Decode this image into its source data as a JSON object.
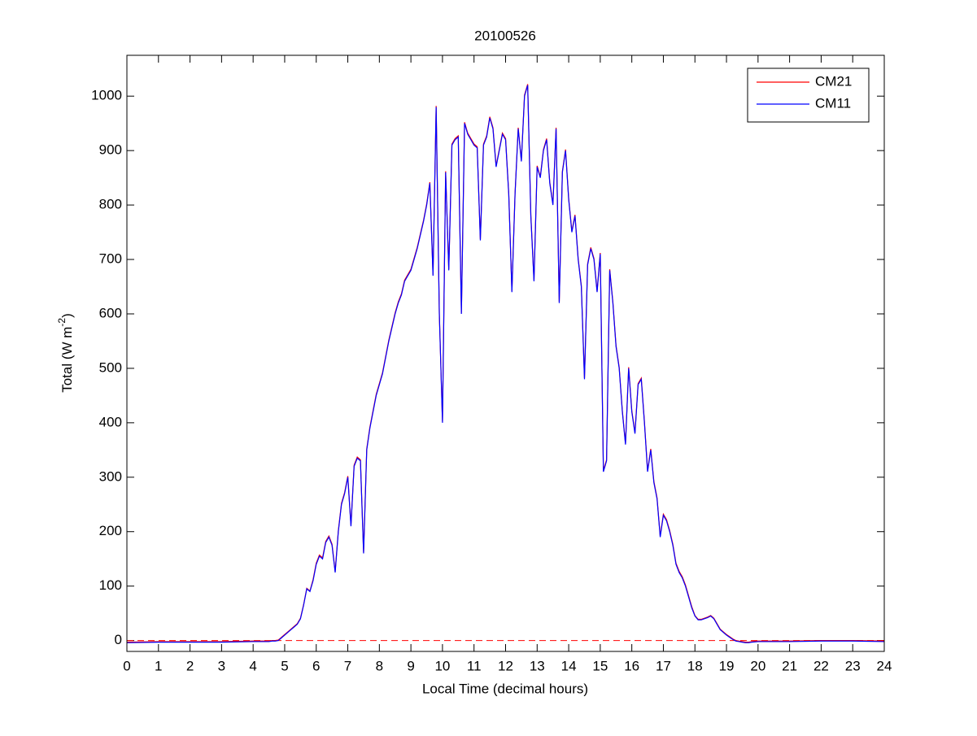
{
  "chart_data": {
    "type": "line",
    "title": "20100526",
    "xlabel": "Local Time (decimal hours)",
    "ylabel": {
      "text": "Total (W m",
      "superscript": "-2",
      "suffix": ")"
    },
    "x": [
      0,
      1,
      2,
      3,
      4,
      4.5,
      4.6,
      4.7,
      4.8,
      4.9,
      5.0,
      5.1,
      5.2,
      5.3,
      5.4,
      5.5,
      5.6,
      5.7,
      5.8,
      5.9,
      6.0,
      6.1,
      6.2,
      6.3,
      6.4,
      6.5,
      6.6,
      6.7,
      6.8,
      6.9,
      7.0,
      7.1,
      7.2,
      7.3,
      7.4,
      7.5,
      7.6,
      7.7,
      7.8,
      7.9,
      8.0,
      8.1,
      8.2,
      8.3,
      8.4,
      8.5,
      8.6,
      8.7,
      8.8,
      8.9,
      9.0,
      9.1,
      9.2,
      9.3,
      9.4,
      9.5,
      9.6,
      9.7,
      9.8,
      9.9,
      10.0,
      10.1,
      10.2,
      10.3,
      10.4,
      10.5,
      10.6,
      10.7,
      10.8,
      10.9,
      11.0,
      11.1,
      11.2,
      11.3,
      11.4,
      11.5,
      11.6,
      11.7,
      11.8,
      11.9,
      12.0,
      12.1,
      12.2,
      12.3,
      12.4,
      12.5,
      12.6,
      12.7,
      12.8,
      12.9,
      13.0,
      13.1,
      13.2,
      13.3,
      13.4,
      13.5,
      13.6,
      13.7,
      13.8,
      13.9,
      14.0,
      14.1,
      14.2,
      14.3,
      14.4,
      14.5,
      14.6,
      14.7,
      14.8,
      14.9,
      15.0,
      15.1,
      15.2,
      15.3,
      15.4,
      15.5,
      15.6,
      15.7,
      15.8,
      15.9,
      16.0,
      16.1,
      16.2,
      16.3,
      16.4,
      16.5,
      16.6,
      16.7,
      16.8,
      16.9,
      17.0,
      17.1,
      17.2,
      17.3,
      17.4,
      17.5,
      17.6,
      17.7,
      17.8,
      17.9,
      18.0,
      18.1,
      18.2,
      18.3,
      18.4,
      18.5,
      18.6,
      18.7,
      18.8,
      18.9,
      19.0,
      19.1,
      19.2,
      19.3,
      19.4,
      19.5,
      19.6,
      19.7,
      19.8,
      20,
      21,
      22,
      23,
      24
    ],
    "series": [
      {
        "name": "CM21",
        "color": "#ff0000",
        "values": [
          -3,
          -2,
          -2,
          -2,
          -1,
          -1,
          0,
          0,
          1,
          6,
          11,
          16,
          21,
          26,
          31,
          41,
          66,
          96,
          91,
          112,
          142,
          157,
          152,
          182,
          192,
          177,
          127,
          202,
          252,
          272,
          302,
          212,
          322,
          337,
          332,
          162,
          352,
          392,
          422,
          452,
          472,
          492,
          522,
          552,
          577,
          602,
          622,
          637,
          662,
          672,
          682,
          702,
          722,
          747,
          772,
          802,
          842,
          672,
          982,
          602,
          402,
          862,
          682,
          912,
          922,
          927,
          602,
          952,
          932,
          922,
          912,
          907,
          737,
          912,
          927,
          962,
          942,
          872,
          902,
          932,
          922,
          822,
          642,
          822,
          942,
          882,
          1002,
          1022,
          782,
          662,
          872,
          852,
          902,
          922,
          842,
          802,
          942,
          622,
          862,
          902,
          812,
          752,
          782,
          702,
          652,
          482,
          692,
          722,
          702,
          642,
          712,
          312,
          332,
          682,
          622,
          542,
          502,
          422,
          362,
          502,
          422,
          382,
          472,
          482,
          402,
          312,
          352,
          292,
          262,
          192,
          232,
          222,
          202,
          177,
          142,
          127,
          117,
          102,
          82,
          62,
          46,
          39,
          39,
          41,
          43,
          46,
          41,
          31,
          21,
          16,
          11,
          7,
          3,
          0,
          -1,
          -2,
          -3,
          -3,
          -2,
          -1,
          -1,
          0,
          0,
          -1
        ]
      },
      {
        "name": "CM11",
        "color": "#0000ff",
        "values": [
          -4,
          -3,
          -3,
          -3,
          -2,
          -2,
          -1,
          -1,
          0,
          5,
          10,
          15,
          20,
          25,
          30,
          40,
          65,
          95,
          90,
          110,
          140,
          155,
          150,
          180,
          190,
          175,
          125,
          200,
          250,
          270,
          300,
          210,
          320,
          335,
          330,
          160,
          350,
          390,
          420,
          450,
          470,
          490,
          520,
          550,
          575,
          600,
          620,
          635,
          660,
          670,
          680,
          700,
          720,
          745,
          770,
          800,
          840,
          670,
          980,
          600,
          400,
          860,
          680,
          910,
          920,
          925,
          600,
          950,
          930,
          920,
          910,
          905,
          735,
          910,
          925,
          960,
          940,
          870,
          900,
          930,
          920,
          820,
          640,
          820,
          940,
          880,
          1000,
          1020,
          780,
          660,
          870,
          850,
          900,
          920,
          840,
          800,
          940,
          620,
          860,
          900,
          810,
          750,
          780,
          700,
          650,
          480,
          690,
          720,
          700,
          640,
          710,
          310,
          330,
          680,
          620,
          540,
          500,
          420,
          360,
          500,
          420,
          380,
          470,
          480,
          400,
          310,
          350,
          290,
          260,
          190,
          230,
          220,
          200,
          175,
          140,
          125,
          115,
          100,
          80,
          60,
          45,
          38,
          38,
          40,
          42,
          45,
          40,
          30,
          20,
          15,
          10,
          6,
          2,
          -1,
          -2,
          -3,
          -4,
          -4,
          -3,
          -2,
          -2,
          -1,
          -1,
          -2
        ]
      }
    ],
    "reference_line": {
      "y": 0,
      "color": "#ff0000",
      "style": "dashed"
    },
    "xlim": [
      0,
      24
    ],
    "xticks": [
      0,
      1,
      2,
      3,
      4,
      5,
      6,
      7,
      8,
      9,
      10,
      11,
      12,
      13,
      14,
      15,
      16,
      17,
      18,
      19,
      20,
      21,
      22,
      23,
      24
    ],
    "ylim": [
      -20,
      1075
    ],
    "yticks": [
      0,
      100,
      200,
      300,
      400,
      500,
      600,
      700,
      800,
      900,
      1000
    ],
    "grid": false,
    "legend": "northeast"
  }
}
